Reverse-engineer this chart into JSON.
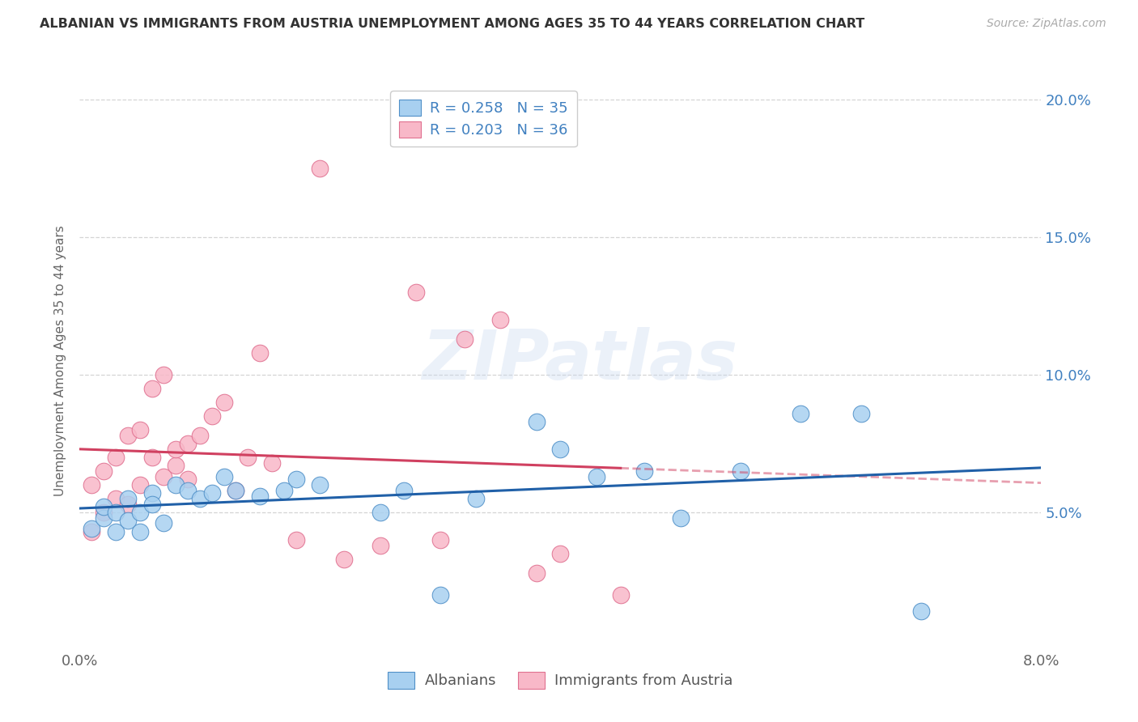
{
  "title": "ALBANIAN VS IMMIGRANTS FROM AUSTRIA UNEMPLOYMENT AMONG AGES 35 TO 44 YEARS CORRELATION CHART",
  "source": "Source: ZipAtlas.com",
  "ylabel": "Unemployment Among Ages 35 to 44 years",
  "xlim": [
    0.0,
    0.08
  ],
  "ylim": [
    0.0,
    0.21
  ],
  "y_ticks": [
    0.05,
    0.1,
    0.15,
    0.2
  ],
  "y_tick_labels": [
    "5.0%",
    "10.0%",
    "15.0%",
    "20.0%"
  ],
  "x_ticks": [
    0.0,
    0.01,
    0.02,
    0.03,
    0.04,
    0.05,
    0.06,
    0.07,
    0.08
  ],
  "alb_color": "#a8d0f0",
  "alb_edge": "#5090c8",
  "alb_line": "#2060a8",
  "aut_color": "#f8b8c8",
  "aut_edge": "#e07090",
  "aut_line": "#d04060",
  "legend_text_color": "#4080c0",
  "alb_R": "0.258",
  "alb_N": "35",
  "aut_R": "0.203",
  "aut_N": "36",
  "albanians_x": [
    0.001,
    0.002,
    0.002,
    0.003,
    0.003,
    0.004,
    0.004,
    0.005,
    0.005,
    0.006,
    0.006,
    0.007,
    0.008,
    0.009,
    0.01,
    0.011,
    0.012,
    0.013,
    0.015,
    0.017,
    0.018,
    0.02,
    0.025,
    0.027,
    0.03,
    0.033,
    0.038,
    0.04,
    0.043,
    0.047,
    0.05,
    0.055,
    0.06,
    0.065,
    0.07
  ],
  "albanians_y": [
    0.044,
    0.048,
    0.052,
    0.043,
    0.05,
    0.047,
    0.055,
    0.05,
    0.043,
    0.057,
    0.053,
    0.046,
    0.06,
    0.058,
    0.055,
    0.057,
    0.063,
    0.058,
    0.056,
    0.058,
    0.062,
    0.06,
    0.05,
    0.058,
    0.02,
    0.055,
    0.083,
    0.073,
    0.063,
    0.065,
    0.048,
    0.065,
    0.086,
    0.086,
    0.014
  ],
  "austria_x": [
    0.001,
    0.001,
    0.002,
    0.002,
    0.003,
    0.003,
    0.004,
    0.004,
    0.005,
    0.005,
    0.006,
    0.006,
    0.007,
    0.007,
    0.008,
    0.008,
    0.009,
    0.009,
    0.01,
    0.011,
    0.012,
    0.013,
    0.014,
    0.015,
    0.016,
    0.018,
    0.02,
    0.022,
    0.025,
    0.028,
    0.03,
    0.032,
    0.035,
    0.038,
    0.04,
    0.045
  ],
  "austria_y": [
    0.043,
    0.06,
    0.05,
    0.065,
    0.055,
    0.07,
    0.053,
    0.078,
    0.08,
    0.06,
    0.07,
    0.095,
    0.063,
    0.1,
    0.067,
    0.073,
    0.075,
    0.062,
    0.078,
    0.085,
    0.09,
    0.058,
    0.07,
    0.108,
    0.068,
    0.04,
    0.175,
    0.033,
    0.038,
    0.13,
    0.04,
    0.113,
    0.12,
    0.028,
    0.035,
    0.02
  ],
  "watermark": "ZIPatlas",
  "bg": "#ffffff",
  "grid_color": "#d0d0d0"
}
